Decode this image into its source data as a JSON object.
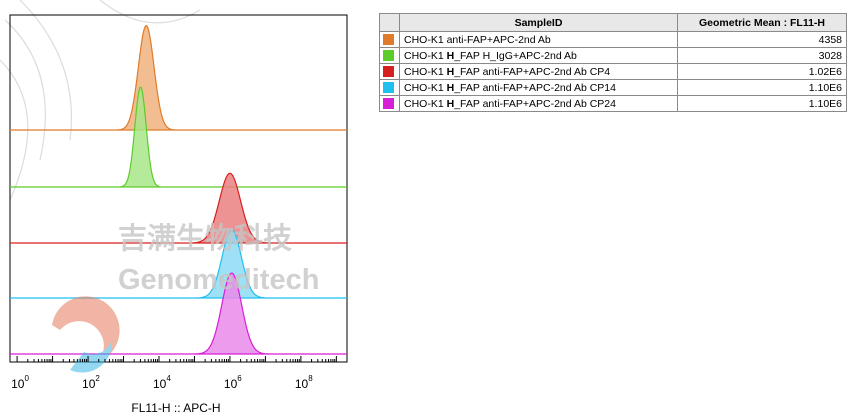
{
  "chart_data": {
    "type": "histogram-offset",
    "xlabel": "FL11-H :: APC-H",
    "x_scale": "log",
    "xlim_log10": [
      -0.2,
      9.3
    ],
    "x_ticks": [
      {
        "base": "10",
        "exp": "0",
        "log": 0
      },
      {
        "base": "10",
        "exp": "2",
        "log": 2
      },
      {
        "base": "10",
        "exp": "4",
        "log": 4
      },
      {
        "base": "10",
        "exp": "6",
        "log": 6
      },
      {
        "base": "10",
        "exp": "8",
        "log": 8
      }
    ],
    "series": [
      {
        "name": "CHO-K1 anti-FAP+APC-2nd Ab",
        "peak_log10": 3.64,
        "width": 0.22,
        "color": "#e07b2a",
        "fill": "#efb27e",
        "rel_height": 0.95
      },
      {
        "name": "CHO-K1 H_FAP H_IgG+APC-2nd Ab",
        "peak_log10": 3.48,
        "width": 0.16,
        "color": "#5ccc2a",
        "fill": "#a9e68a",
        "rel_height": 1.0
      },
      {
        "name": "CHO-K1 H_FAP anti-FAP+APC-2nd Ab CP4",
        "peak_log10": 6.0,
        "width": 0.3,
        "color": "#d62020",
        "fill": "#ea8080",
        "rel_height": 0.82
      },
      {
        "name": "CHO-K1 H_FAP anti-FAP+APC-2nd Ab CP14",
        "peak_log10": 6.05,
        "width": 0.27,
        "color": "#1fc0ee",
        "fill": "#8ddcf5",
        "rel_height": 0.9
      },
      {
        "name": "CHO-K1 H_FAP anti-FAP+APC-2nd Ab CP24",
        "peak_log10": 6.05,
        "width": 0.28,
        "color": "#d61fd6",
        "fill": "#ea8aea",
        "rel_height": 0.88
      }
    ]
  },
  "watermark": {
    "chinese": "吉满生物科技",
    "english": "Genomeditech"
  },
  "table": {
    "headers": [
      "SampleID",
      "Geometric Mean : FL11-H"
    ],
    "rows": [
      {
        "label_pre": "CHO-K1 anti-FAP+APC-2nd Ab",
        "label_bold": "",
        "label_post": "",
        "value": "4358",
        "color": "#e07b2a"
      },
      {
        "label_pre": "CHO-K1 ",
        "label_bold": "H",
        "label_post": "_FAP H_IgG+APC-2nd Ab",
        "value": "3028",
        "color": "#5ccc2a"
      },
      {
        "label_pre": "CHO-K1 ",
        "label_bold": "H",
        "label_post": "_FAP anti-FAP+APC-2nd Ab CP4",
        "value": "1.02E6",
        "color": "#d62020"
      },
      {
        "label_pre": "CHO-K1 ",
        "label_bold": "H",
        "label_post": "_FAP anti-FAP+APC-2nd Ab CP14",
        "value": "1.10E6",
        "color": "#1fc0ee"
      },
      {
        "label_pre": "CHO-K1 ",
        "label_bold": "H",
        "label_post": "_FAP anti-FAP+APC-2nd Ab CP24",
        "value": "1.10E6",
        "color": "#d61fd6"
      }
    ]
  }
}
